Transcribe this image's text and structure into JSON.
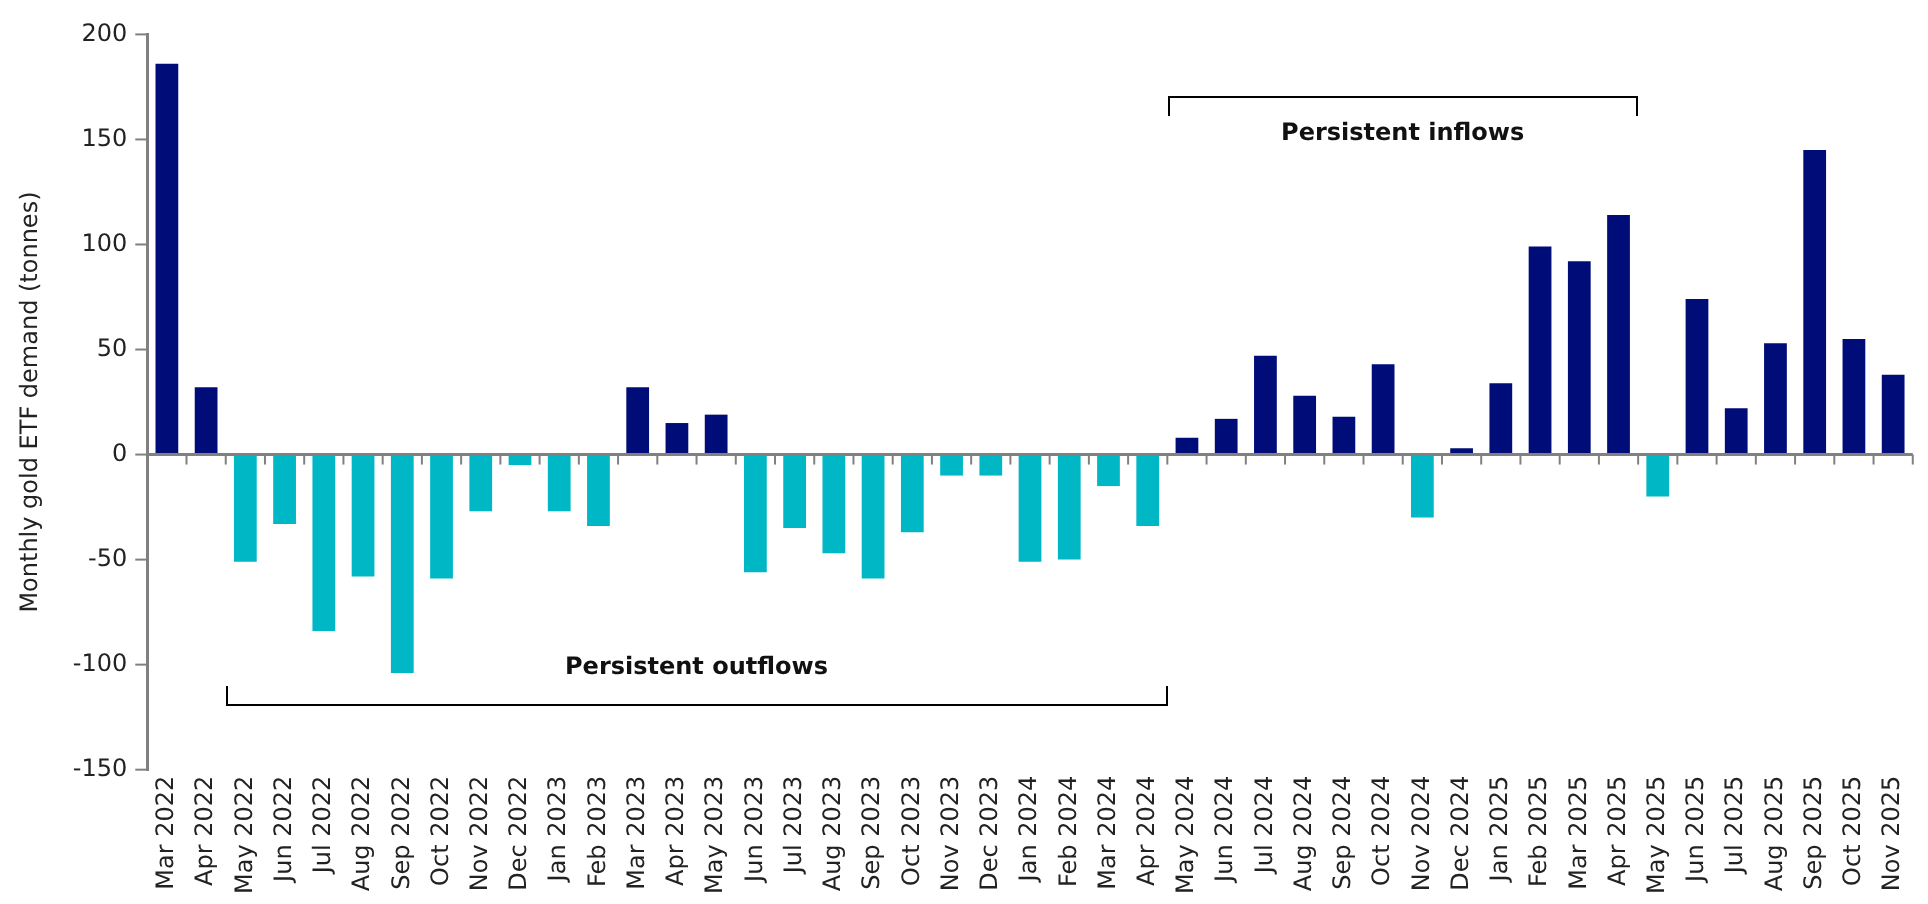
{
  "chart_data": {
    "type": "bar",
    "ylabel": "Monthly gold ETF demand (tonnes)",
    "categories": [
      "Mar 2022",
      "Apr 2022",
      "May 2022",
      "Jun 2022",
      "Jul 2022",
      "Aug 2022",
      "Sep 2022",
      "Oct 2022",
      "Nov 2022",
      "Dec 2022",
      "Jan 2023",
      "Feb 2023",
      "Mar 2023",
      "Apr 2023",
      "May 2023",
      "Jun 2023",
      "Jul 2023",
      "Aug 2023",
      "Sep 2023",
      "Oct 2023",
      "Nov 2023",
      "Dec 2023",
      "Jan 2024",
      "Feb 2024",
      "Mar 2024",
      "Apr 2024",
      "May 2024",
      "Jun 2024",
      "Jul 2024",
      "Aug 2024",
      "Sep 2024",
      "Oct 2024",
      "Nov 2024",
      "Dec 2024",
      "Jan 2025",
      "Feb 2025",
      "Mar 2025",
      "Apr 2025",
      "May 2025",
      "Jun 2025",
      "Jul 2025",
      "Aug 2025",
      "Sep 2025",
      "Oct 2025",
      "Nov 2025"
    ],
    "values": [
      186,
      32,
      -51,
      -33,
      -84,
      -58,
      -104,
      -59,
      -27,
      -5,
      -27,
      -34,
      32,
      15,
      19,
      -56,
      -35,
      -47,
      -59,
      -37,
      -10,
      -10,
      -51,
      -50,
      -15,
      -34,
      8,
      17,
      47,
      28,
      18,
      43,
      -30,
      3,
      34,
      99,
      92,
      114,
      -20,
      74,
      22,
      53,
      145,
      55,
      38
    ],
    "colors": [
      "#000c78",
      "#000c78",
      "#00b7c6",
      "#00b7c6",
      "#00b7c6",
      "#00b7c6",
      "#00b7c6",
      "#00b7c6",
      "#00b7c6",
      "#00b7c6",
      "#00b7c6",
      "#00b7c6",
      "#000c78",
      "#000c78",
      "#000c78",
      "#00b7c6",
      "#00b7c6",
      "#00b7c6",
      "#00b7c6",
      "#00b7c6",
      "#00b7c6",
      "#00b7c6",
      "#00b7c6",
      "#00b7c6",
      "#00b7c6",
      "#00b7c6",
      "#000c78",
      "#000c78",
      "#000c78",
      "#000c78",
      "#000c78",
      "#000c78",
      "#00b7c6",
      "#000c78",
      "#000c78",
      "#000c78",
      "#000c78",
      "#000c78",
      "#00b7c6",
      "#000c78",
      "#000c78",
      "#000c78",
      "#000c78",
      "#000c78",
      "#000c78"
    ],
    "ylim": [
      -150,
      200
    ],
    "yticks": [
      -150,
      -100,
      -50,
      0,
      50,
      100,
      150,
      200
    ],
    "annotations": [
      "Persistent outflows",
      "Persistent inflows"
    ]
  }
}
